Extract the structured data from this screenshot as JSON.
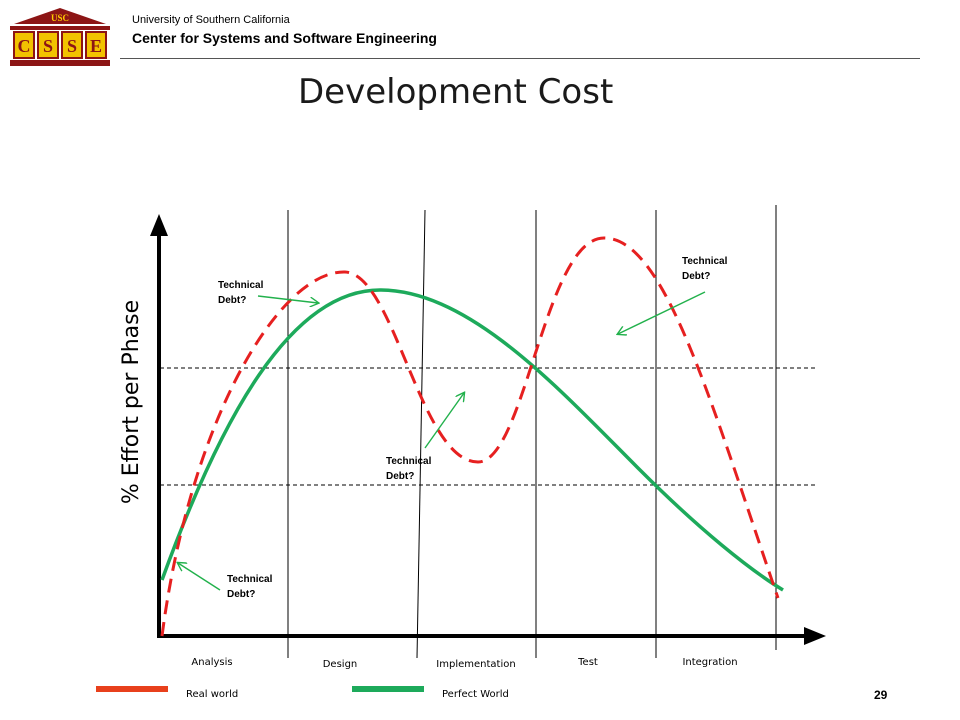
{
  "header": {
    "logo_top": "USC",
    "logo_letters": [
      "C",
      "S",
      "S",
      "E"
    ],
    "university": "University of Southern California",
    "center": "Center for Systems and Software Engineering"
  },
  "slide": {
    "title": "Development Cost",
    "page_number": "29"
  },
  "diagram": {
    "y_axis_label": "% Effort per Phase",
    "phases": [
      "Analysis",
      "Design",
      "Implementation",
      "Test",
      "Integration"
    ],
    "annotations": [
      "Technical\nDebt?",
      "Technical\nDebt?",
      "Technical\nDebt?",
      "Technical\nDebt?"
    ],
    "legend": [
      {
        "label": "Real world",
        "color": "#e8401c"
      },
      {
        "label": "Perfect World",
        "color": "#1daa5b"
      }
    ],
    "colors": {
      "real_curve": "#e62020",
      "perfect_curve": "#1daa5b",
      "arrow": "#22b14c",
      "axis": "#000000"
    }
  }
}
